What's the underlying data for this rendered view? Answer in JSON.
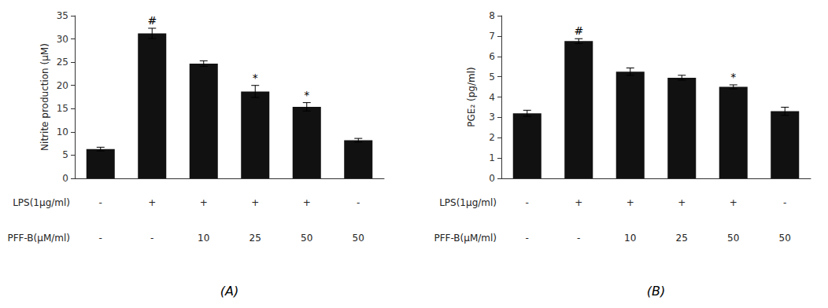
{
  "chart_data": [
    {
      "type": "bar",
      "title": "(A)",
      "ylabel": "Nitrite production (μM)",
      "values": [
        6.3,
        31.2,
        24.7,
        18.7,
        15.4,
        8.2
      ],
      "errors": [
        0.4,
        1.1,
        0.6,
        1.3,
        0.9,
        0.4
      ],
      "color": "#111111",
      "ylim": [
        0,
        35
      ],
      "yticks": [
        0,
        5,
        10,
        15,
        20,
        25,
        30,
        35
      ],
      "grid": false,
      "rows": [
        {
          "label": "LPS(1μg/ml)",
          "values": [
            "-",
            "+",
            "+",
            "+",
            "+",
            "-"
          ]
        },
        {
          "label": "PFF-B(μM/ml)",
          "values": [
            "-",
            "-",
            "10",
            "25",
            "50",
            "50"
          ]
        }
      ],
      "annotations": [
        {
          "index": 1,
          "text": "#"
        },
        {
          "index": 3,
          "text": "*"
        },
        {
          "index": 4,
          "text": "*"
        }
      ]
    },
    {
      "type": "bar",
      "title": "(B)",
      "ylabel": "PGE₂ (pg/ml)",
      "values": [
        3.2,
        6.75,
        5.25,
        4.95,
        4.5,
        3.3
      ],
      "errors": [
        0.15,
        0.12,
        0.18,
        0.12,
        0.1,
        0.2
      ],
      "color": "#111111",
      "ylim": [
        0,
        8
      ],
      "yticks": [
        0,
        1,
        2,
        3,
        4,
        5,
        6,
        7,
        8
      ],
      "grid": false,
      "rows": [
        {
          "label": "LPS(1μg/ml)",
          "values": [
            "-",
            "+",
            "+",
            "+",
            "+",
            "-"
          ]
        },
        {
          "label": "PFF-B(μM/ml)",
          "values": [
            "-",
            "-",
            "10",
            "25",
            "50",
            "50"
          ]
        }
      ],
      "annotations": [
        {
          "index": 1,
          "text": "#"
        },
        {
          "index": 4,
          "text": "*"
        }
      ]
    }
  ]
}
